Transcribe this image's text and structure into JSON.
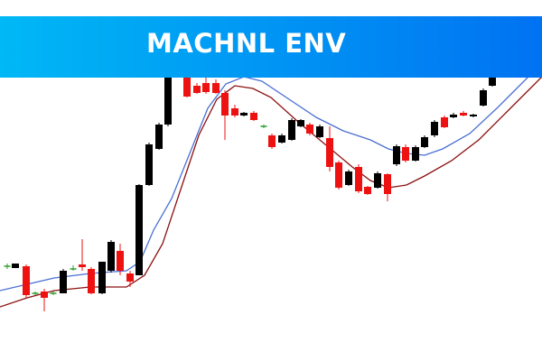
{
  "chart_data": {
    "type": "candlestick",
    "title": "MACHNL ENV",
    "xlim": [
      0,
      600
    ],
    "ylim": [
      0,
      100
    ],
    "up_color": "#000000",
    "down_color": "#ee1111",
    "doji_color": "#2e9e2e",
    "x": [
      8,
      17,
      29,
      39,
      49,
      59,
      70,
      81,
      91,
      101,
      113,
      123,
      133,
      144,
      154,
      165,
      176,
      186,
      207,
      218,
      228,
      239,
      249,
      260,
      270,
      281,
      292,
      301,
      312,
      323,
      333,
      343,
      354,
      365,
      375,
      386,
      397,
      407,
      418,
      429,
      439,
      449,
      460,
      470,
      481,
      492,
      502,
      513,
      524,
      535,
      545
    ],
    "open": [
      26.25,
      25.75,
      26.25,
      18.75,
      19.25,
      18.75,
      18.75,
      25.5,
      26.75,
      25.5,
      18.75,
      25,
      30.5,
      24.25,
      23.75,
      48.75,
      58.75,
      65.5,
      78.75,
      76.25,
      77,
      77,
      74.25,
      70,
      68,
      68.75,
      65,
      62.5,
      60.5,
      61.25,
      65,
      65.5,
      62,
      61.75,
      55,
      48.75,
      53.75,
      48.25,
      48,
      51.75,
      54.5,
      59.25,
      55.5,
      59.25,
      62.5,
      67.5,
      67.5,
      68.75,
      67.75,
      70.75,
      76.25
    ],
    "high": [
      27,
      27,
      26.75,
      19.25,
      20,
      19.25,
      25.5,
      26.5,
      33.75,
      26,
      27.5,
      33.5,
      32.5,
      25,
      49,
      60.5,
      66,
      81,
      79,
      77,
      78.5,
      78,
      75,
      71,
      69,
      69.25,
      65.5,
      63,
      63,
      67.25,
      67,
      66,
      65.5,
      65,
      55.5,
      53,
      54.5,
      48.5,
      52.5,
      52,
      60,
      60,
      59.75,
      62.5,
      66.75,
      68,
      68.75,
      69.25,
      68.5,
      75.5,
      79
    ],
    "low": [
      25.5,
      25.75,
      17.5,
      18.25,
      13.75,
      18.25,
      18.75,
      25,
      25,
      18.5,
      18.5,
      24.5,
      23.75,
      20.5,
      23.75,
      48.5,
      58.5,
      65,
      73,
      74,
      74,
      74,
      61.25,
      67.5,
      67.75,
      66.5,
      64.5,
      58.75,
      60.25,
      61,
      64.75,
      62.5,
      61.75,
      52.5,
      47.5,
      48.5,
      46.5,
      46,
      47.75,
      44.25,
      54,
      55,
      55.25,
      59,
      62,
      64.5,
      67.25,
      67.75,
      67.5,
      70.5,
      76
    ],
    "close": [
      26.25,
      27,
      18.25,
      18.75,
      17.5,
      18.75,
      25,
      25.5,
      26,
      18.75,
      27.5,
      33,
      25,
      22,
      48.75,
      60,
      65.5,
      80,
      73.25,
      74.25,
      74.5,
      74.25,
      68,
      68,
      68.75,
      66.75,
      65,
      59.25,
      62.5,
      66.75,
      66.75,
      63,
      65,
      53.75,
      48,
      52.5,
      47,
      46.25,
      52,
      46.25,
      59.5,
      55.5,
      59.25,
      62,
      66.25,
      64.75,
      68.25,
      68,
      68.25,
      75,
      78.75
    ],
    "series": [
      {
        "color": "#4a6fd4",
        "x": [
          0,
          30,
          60,
          100,
          140,
          155,
          170,
          190,
          210,
          230,
          250,
          270,
          290,
          320,
          350,
          380,
          410,
          430,
          450,
          470,
          490,
          520,
          550,
          575,
          600
        ],
        "values": [
          19.5,
          21.25,
          23,
          24.25,
          25,
          27.5,
          36.25,
          45,
          57.5,
          70,
          76.75,
          78.75,
          77.5,
          72.5,
          67.5,
          63.75,
          61.25,
          58.75,
          57.5,
          57,
          58.75,
          63,
          70,
          76.25,
          82.5
        ]
      },
      {
        "color": "#8b1010",
        "x": [
          0,
          30,
          60,
          100,
          140,
          160,
          180,
          200,
          220,
          240,
          260,
          280,
          300,
          330,
          360,
          390,
          410,
          430,
          450,
          470,
          500,
          530,
          560,
          590,
          600
        ],
        "values": [
          15,
          17.5,
          19.5,
          20.5,
          20.5,
          23.75,
          32.5,
          47.5,
          62.5,
          72.5,
          76.25,
          75.5,
          73,
          66.25,
          60,
          53.75,
          50,
          48,
          48.75,
          51.25,
          55.5,
          61.25,
          68.75,
          76.25,
          78.75
        ]
      }
    ]
  }
}
